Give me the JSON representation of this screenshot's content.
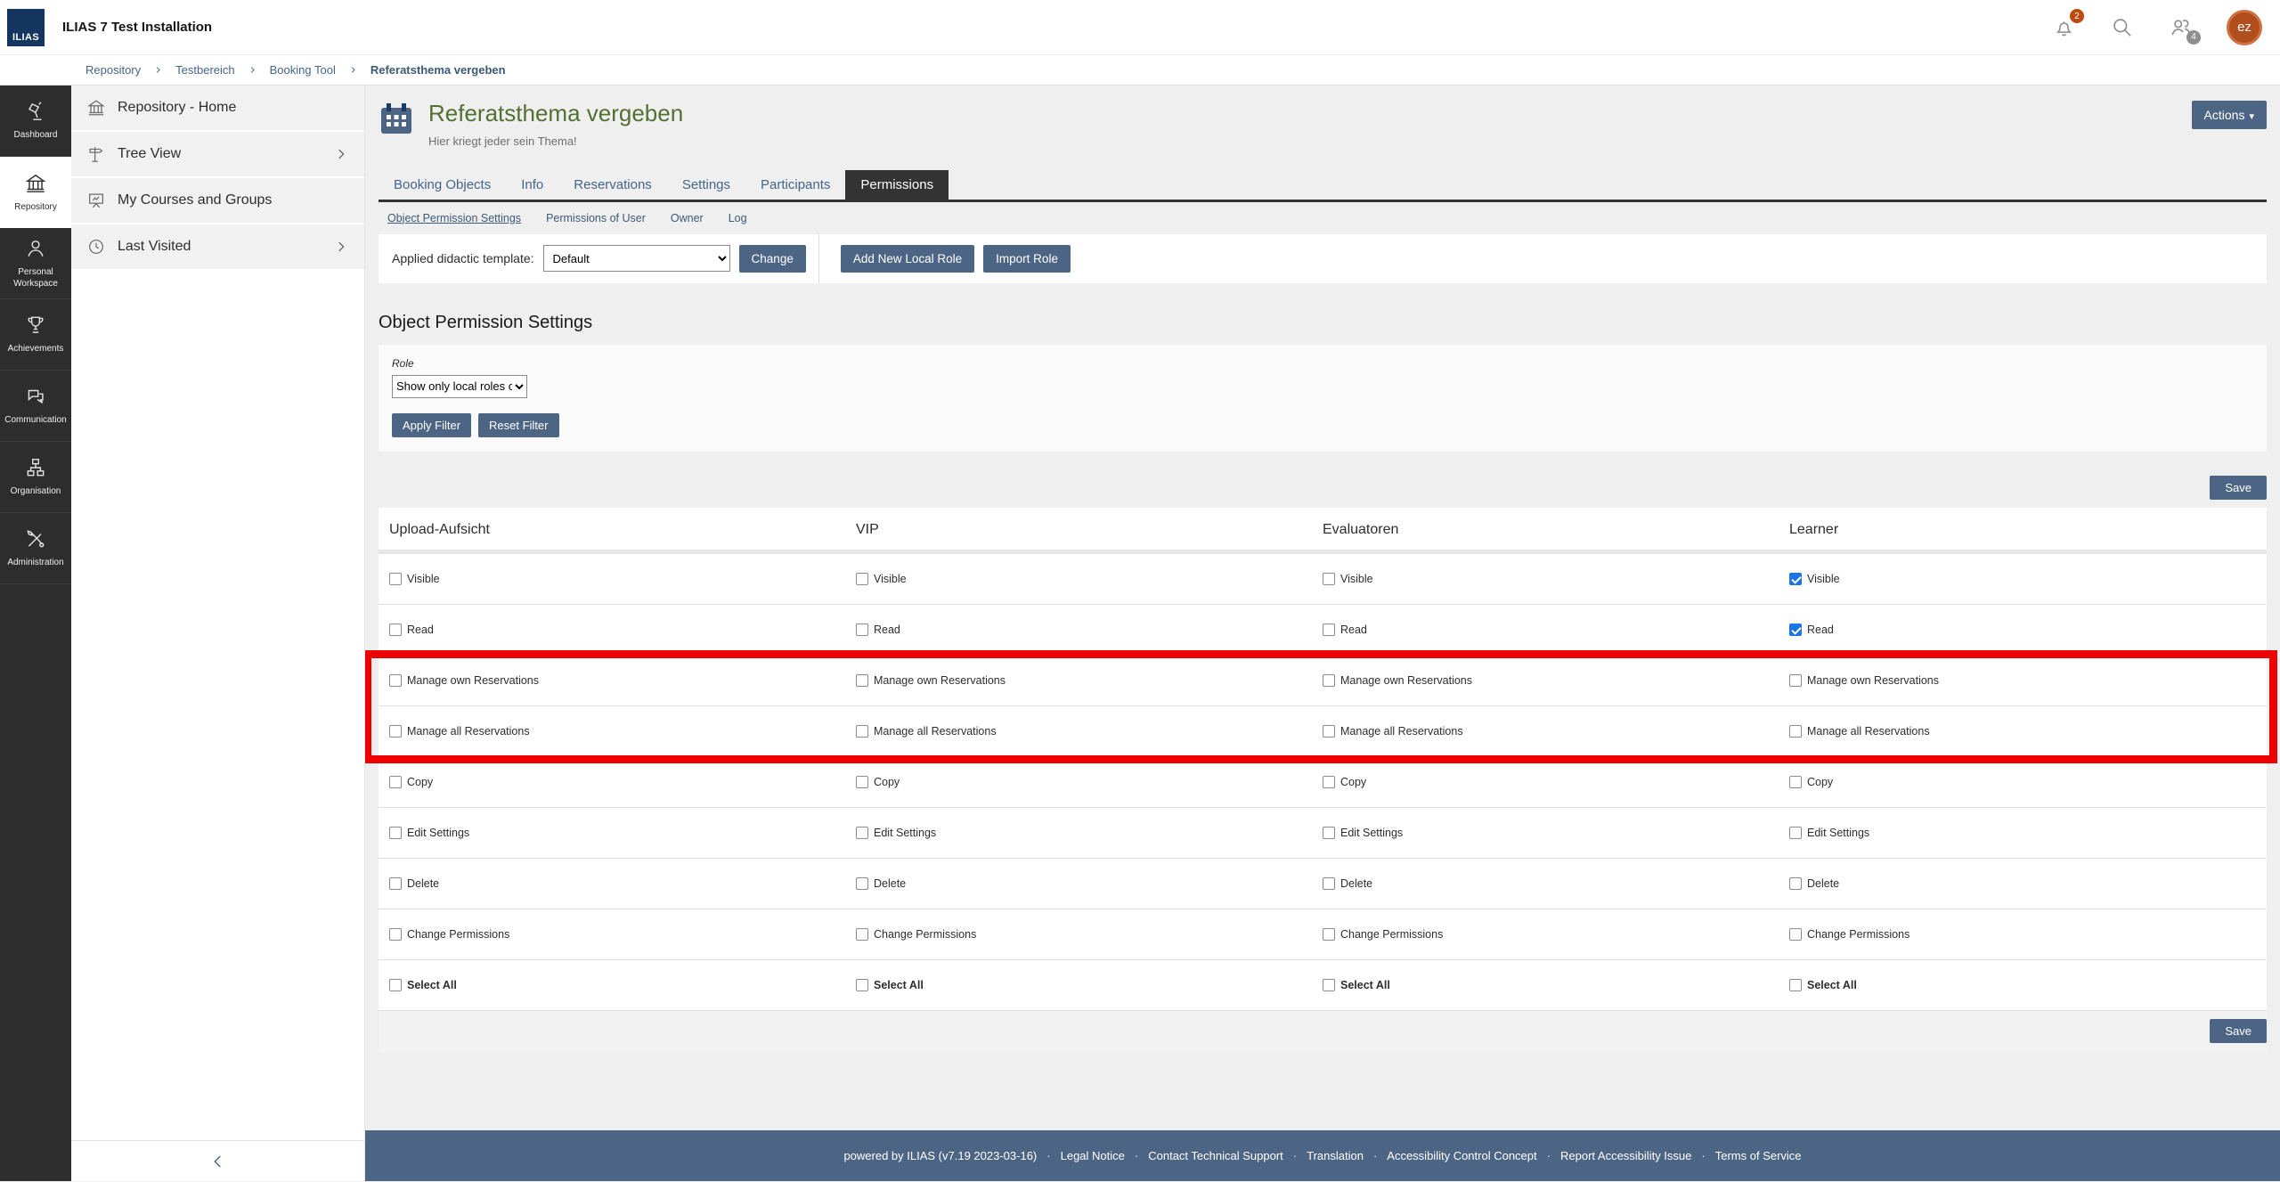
{
  "header": {
    "logo_text": "ILIAS",
    "app_title": "ILIAS 7 Test Installation",
    "notifications_badge": "2",
    "contacts_badge": "4",
    "avatar_text": "ez"
  },
  "breadcrumb": {
    "items": [
      "Repository",
      "Testbereich",
      "Booking Tool",
      "Referatsthema vergeben"
    ]
  },
  "rail": {
    "items": [
      {
        "label": "Dashboard",
        "icon": "lamp",
        "active": false
      },
      {
        "label": "Repository",
        "icon": "bank",
        "active": true
      },
      {
        "label": "Personal Workspace",
        "icon": "person",
        "active": false
      },
      {
        "label": "Achievements",
        "icon": "trophy",
        "active": false
      },
      {
        "label": "Communication",
        "icon": "chat",
        "active": false
      },
      {
        "label": "Organisation",
        "icon": "orgchart",
        "active": false
      },
      {
        "label": "Administration",
        "icon": "tools",
        "active": false
      }
    ]
  },
  "sidebar": {
    "items": [
      {
        "label": "Repository - Home",
        "icon": "bank",
        "chevron": false
      },
      {
        "label": "Tree View",
        "icon": "signpost",
        "chevron": true
      },
      {
        "label": "My Courses and Groups",
        "icon": "board",
        "chevron": false
      },
      {
        "label": "Last Visited",
        "icon": "clock",
        "chevron": true
      }
    ]
  },
  "page": {
    "title": "Referatsthema vergeben",
    "subtitle": "Hier kriegt jeder sein Thema!",
    "actions_label": "Actions",
    "actions_caret": "▾"
  },
  "tabs": [
    {
      "label": "Booking Objects",
      "active": false
    },
    {
      "label": "Info",
      "active": false
    },
    {
      "label": "Reservations",
      "active": false
    },
    {
      "label": "Settings",
      "active": false
    },
    {
      "label": "Participants",
      "active": false
    },
    {
      "label": "Permissions",
      "active": true
    }
  ],
  "subtabs": [
    {
      "label": "Object Permission Settings",
      "active": true
    },
    {
      "label": "Permissions of User",
      "active": false
    },
    {
      "label": "Owner",
      "active": false
    },
    {
      "label": "Log",
      "active": false
    }
  ],
  "toolbar": {
    "template_label": "Applied didactic template:",
    "template_value": "Default",
    "change_label": "Change",
    "add_role_label": "Add New Local Role",
    "import_role_label": "Import Role"
  },
  "permissions": {
    "heading": "Object Permission Settings",
    "filter": {
      "role_label": "Role",
      "role_value": "Show only local roles c",
      "apply_label": "Apply Filter",
      "reset_label": "Reset Filter"
    },
    "save_label": "Save",
    "columns": [
      "Upload-Aufsicht",
      "VIP",
      "Evaluatoren",
      "Learner"
    ],
    "rows": [
      {
        "label": "Visible",
        "checked": [
          false,
          false,
          false,
          true
        ],
        "highlighted": false,
        "bold": false
      },
      {
        "label": "Read",
        "checked": [
          false,
          false,
          false,
          true
        ],
        "highlighted": false,
        "bold": false
      },
      {
        "label": "Manage own Reservations",
        "checked": [
          false,
          false,
          false,
          false
        ],
        "highlighted": true,
        "bold": false
      },
      {
        "label": "Manage all Reservations",
        "checked": [
          false,
          false,
          false,
          false
        ],
        "highlighted": true,
        "bold": false
      },
      {
        "label": "Copy",
        "checked": [
          false,
          false,
          false,
          false
        ],
        "highlighted": false,
        "bold": false
      },
      {
        "label": "Edit Settings",
        "checked": [
          false,
          false,
          false,
          false
        ],
        "highlighted": false,
        "bold": false
      },
      {
        "label": "Delete",
        "checked": [
          false,
          false,
          false,
          false
        ],
        "highlighted": false,
        "bold": false
      },
      {
        "label": "Change Permissions",
        "checked": [
          false,
          false,
          false,
          false
        ],
        "highlighted": false,
        "bold": false
      },
      {
        "label": "Select All",
        "checked": [
          false,
          false,
          false,
          false
        ],
        "highlighted": false,
        "bold": true
      }
    ],
    "highlight_color": "#ee0000"
  },
  "footer": {
    "powered_by": "powered by ILIAS (v7.19 2023-03-16)",
    "separator": "·",
    "links": [
      "Legal Notice",
      "Contact Technical Support",
      "Translation",
      "Accessibility Control Concept",
      "Report Accessibility Issue",
      "Terms of Service"
    ]
  },
  "colors": {
    "accent": "#4d6584",
    "title_green": "#537032",
    "checkbox_checked": "#1a73e8",
    "highlight": "#ee0000",
    "badge_orange": "#bc4a0e",
    "badge_gray": "#8e8e8e",
    "avatar_bg": "#b24d1e",
    "rail_bg": "#2d2d2d",
    "page_bg": "#efefef"
  }
}
